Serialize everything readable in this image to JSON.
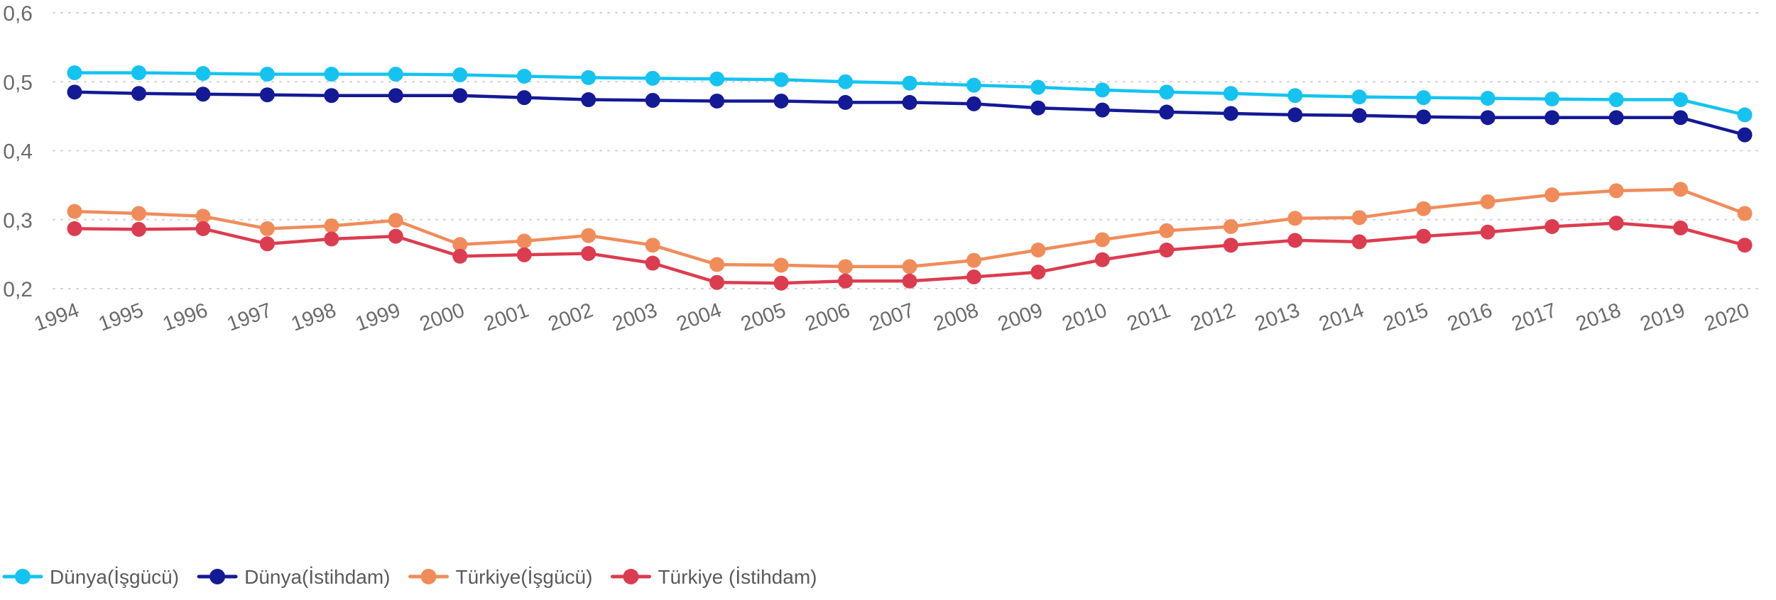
{
  "chart_data": {
    "type": "line",
    "title": "",
    "xlabel": "",
    "ylabel": "",
    "ylim": [
      0.2,
      0.6
    ],
    "y_ticks": [
      "0,6",
      "0,5",
      "0,4",
      "0,3",
      "0,2"
    ],
    "y_tick_values": [
      0.6,
      0.5,
      0.4,
      0.3,
      0.2
    ],
    "grid": "horizontal-dotted",
    "legend_position": "bottom-left",
    "x": [
      "1994",
      "1995",
      "1996",
      "1997",
      "1998",
      "1999",
      "2000",
      "2001",
      "2002",
      "2003",
      "2004",
      "2005",
      "2006",
      "2007",
      "2008",
      "2009",
      "2010",
      "2011",
      "2012",
      "2013",
      "2014",
      "2015",
      "2016",
      "2017",
      "2018",
      "2019",
      "2020"
    ],
    "series": [
      {
        "name": "Dünya(İşgücü)",
        "color": "#14c3f0",
        "values": [
          0.513,
          0.513,
          0.512,
          0.511,
          0.511,
          0.511,
          0.51,
          0.508,
          0.506,
          0.505,
          0.504,
          0.503,
          0.5,
          0.498,
          0.495,
          0.492,
          0.488,
          0.485,
          0.483,
          0.48,
          0.478,
          0.477,
          0.476,
          0.475,
          0.474,
          0.474,
          0.452
        ]
      },
      {
        "name": "Dünya(İstihdam)",
        "color": "#141996",
        "values": [
          0.485,
          0.483,
          0.482,
          0.481,
          0.48,
          0.48,
          0.48,
          0.477,
          0.474,
          0.473,
          0.472,
          0.472,
          0.47,
          0.47,
          0.468,
          0.462,
          0.459,
          0.456,
          0.454,
          0.452,
          0.451,
          0.449,
          0.448,
          0.448,
          0.448,
          0.448,
          0.423
        ]
      },
      {
        "name": "Türkiye(İşgücü)",
        "color": "#f08c5a",
        "values": [
          0.312,
          0.309,
          0.305,
          0.287,
          0.291,
          0.299,
          0.264,
          0.269,
          0.277,
          0.263,
          0.235,
          0.234,
          0.232,
          0.232,
          0.241,
          0.256,
          0.271,
          0.284,
          0.29,
          0.302,
          0.303,
          0.316,
          0.326,
          0.336,
          0.342,
          0.344,
          0.309
        ]
      },
      {
        "name": "Türkiye (İstihdam)",
        "color": "#dc3c50",
        "values": [
          0.287,
          0.286,
          0.287,
          0.265,
          0.272,
          0.276,
          0.247,
          0.249,
          0.251,
          0.237,
          0.209,
          0.208,
          0.211,
          0.211,
          0.217,
          0.224,
          0.242,
          0.256,
          0.263,
          0.27,
          0.268,
          0.276,
          0.282,
          0.29,
          0.295,
          0.288,
          0.263
        ]
      }
    ]
  }
}
